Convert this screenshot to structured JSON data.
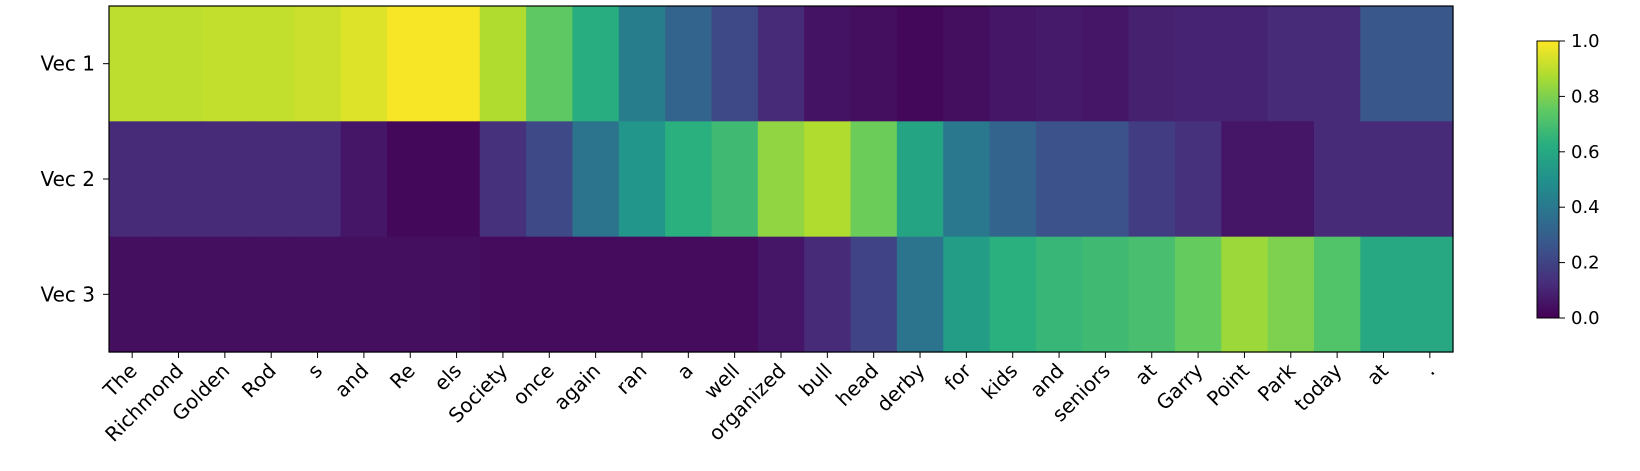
{
  "chart_data": {
    "type": "heatmap",
    "title": "",
    "xlabel": "",
    "ylabel": "",
    "rows": [
      "Vec 1",
      "Vec 2",
      "Vec 3"
    ],
    "columns": [
      "The",
      "Richmond",
      "Golden",
      "Rod",
      "s",
      "and",
      "Re",
      "els",
      "Society",
      "once",
      "again",
      "ran",
      "a",
      "well",
      "organized",
      "bull",
      "head",
      "derby",
      "for",
      "kids",
      "and",
      "seniors",
      "at",
      "Garry",
      "Point",
      "Park",
      "today",
      "at",
      "."
    ],
    "values": [
      [
        0.9,
        0.9,
        0.91,
        0.91,
        0.92,
        0.95,
        0.99,
        0.99,
        0.88,
        0.75,
        0.62,
        0.42,
        0.32,
        0.22,
        0.12,
        0.05,
        0.04,
        0.02,
        0.04,
        0.06,
        0.07,
        0.06,
        0.09,
        0.1,
        0.1,
        0.12,
        0.12,
        0.27,
        0.27
      ],
      [
        0.12,
        0.12,
        0.12,
        0.12,
        0.12,
        0.06,
        0.02,
        0.02,
        0.14,
        0.22,
        0.38,
        0.52,
        0.63,
        0.68,
        0.83,
        0.88,
        0.77,
        0.58,
        0.4,
        0.32,
        0.25,
        0.25,
        0.18,
        0.14,
        0.06,
        0.06,
        0.12,
        0.12,
        0.12
      ],
      [
        0.04,
        0.04,
        0.04,
        0.04,
        0.04,
        0.04,
        0.04,
        0.04,
        0.03,
        0.03,
        0.03,
        0.03,
        0.03,
        0.03,
        0.06,
        0.12,
        0.2,
        0.38,
        0.55,
        0.63,
        0.66,
        0.68,
        0.7,
        0.76,
        0.85,
        0.8,
        0.72,
        0.6,
        0.6
      ]
    ],
    "colormap": "viridis",
    "vmin": 0.0,
    "vmax": 1.0,
    "colorbar": {
      "ticks": [
        0.0,
        0.2,
        0.4,
        0.6,
        0.8,
        1.0
      ],
      "tick_labels": [
        "0.0",
        "0.2",
        "0.4",
        "0.6",
        "0.8",
        "1.0"
      ]
    },
    "legend": "colorbar-right"
  }
}
